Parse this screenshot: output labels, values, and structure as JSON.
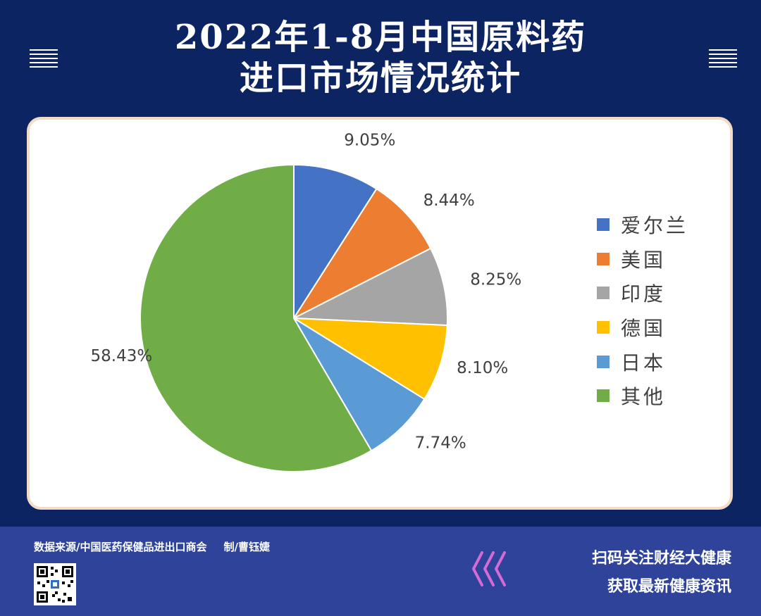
{
  "header": {
    "title_line1": "2022年1-8月中国原料药",
    "title_line2": "进口市场情况统计"
  },
  "chart_data": {
    "type": "pie",
    "labels": [
      "爱尔兰",
      "美国",
      "印度",
      "德国",
      "日本",
      "其他"
    ],
    "values": [
      9.05,
      8.44,
      8.25,
      8.1,
      7.74,
      58.43
    ],
    "value_labels": [
      "9.05%",
      "8.44%",
      "8.25%",
      "8.10%",
      "7.74%",
      "58.43%"
    ],
    "colors": [
      "#4472c4",
      "#ed7d31",
      "#a5a5a5",
      "#ffc000",
      "#5b9bd5",
      "#70ad47"
    ],
    "legend_position": "right",
    "start": "12 o'clock",
    "direction": "clockwise"
  },
  "footer": {
    "source": "数据来源/中国医药保健品进出口商会",
    "credit": "制/曹钰婕",
    "cta_line1": "扫码关注财经大健康",
    "cta_line2": "获取最新健康资讯"
  },
  "icons": {
    "menu": "menu-icon",
    "qr": "qr-code-icon",
    "chevrons": "chevron-left-icon"
  },
  "colors": {
    "background": "#0c2461",
    "footer_band": "#2e4399",
    "chevron": "#d86ad6"
  }
}
